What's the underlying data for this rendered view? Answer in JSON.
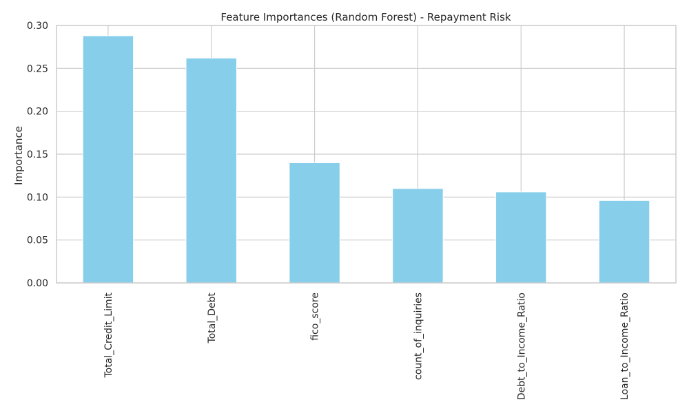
{
  "chart_data": {
    "type": "bar",
    "title": "Feature Importances (Random Forest) - Repayment Risk",
    "xlabel": "",
    "ylabel": "Importance",
    "categories": [
      "Total_Credit_Limit",
      "Total_Debt",
      "fico_score",
      "count_of_inquiries",
      "Debt_to_Income_Ratio",
      "Loan_to_Income_Ratio"
    ],
    "values": [
      0.288,
      0.262,
      0.14,
      0.11,
      0.106,
      0.096
    ],
    "ylim": [
      0,
      0.3
    ],
    "yticks": [
      "0.00",
      "0.05",
      "0.10",
      "0.15",
      "0.20",
      "0.25",
      "0.30"
    ],
    "grid": true,
    "bar_color": "#87ceeb",
    "grid_color": "#cccccc"
  }
}
